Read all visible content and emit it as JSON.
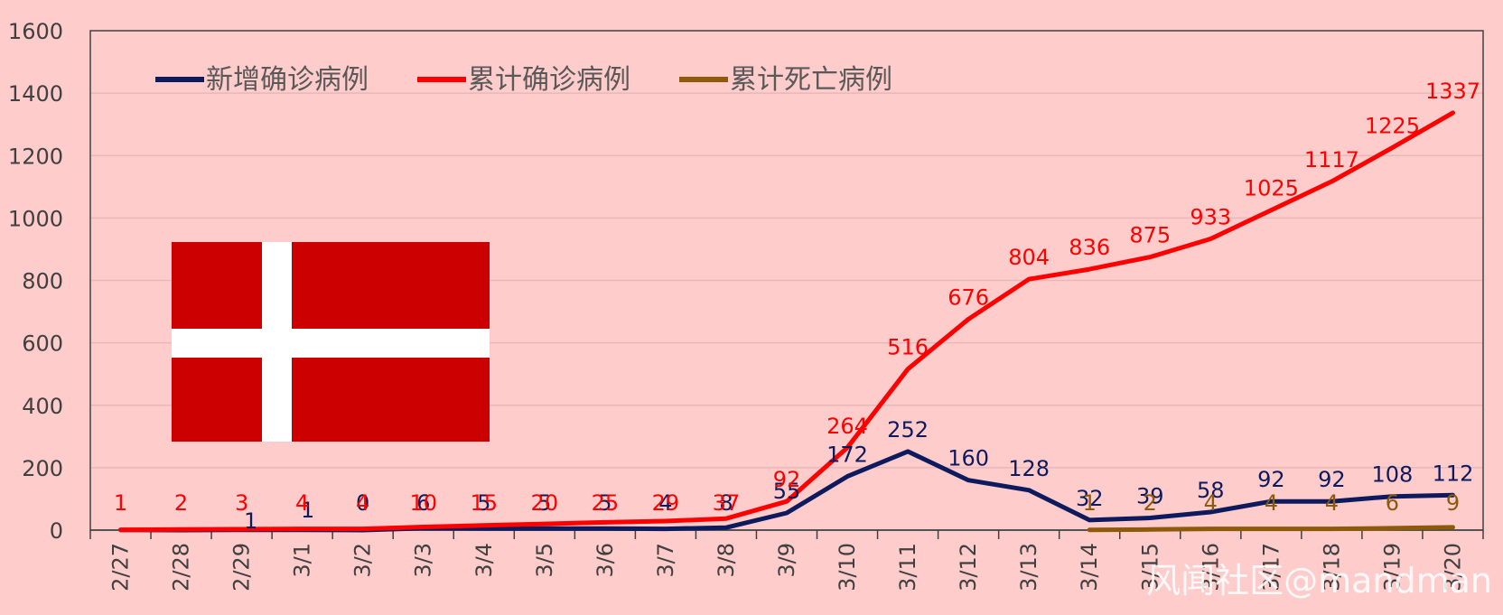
{
  "colors": {
    "background": "#ffcccc",
    "new_cases": "#0d1b5e",
    "cumulative_cases": "#ff0000",
    "cumulative_deaths": "#8c5a0a",
    "flag_red": "#cc0000",
    "flag_white": "#ffffff"
  },
  "watermark": "风闻社区@mandman",
  "chart_data": {
    "type": "line",
    "ylim": [
      0,
      1600
    ],
    "yticks": [
      0,
      200,
      400,
      600,
      800,
      1000,
      1200,
      1400,
      1600
    ],
    "grid": true,
    "legend_position": "top-left",
    "categories": [
      "2/27",
      "2/28",
      "2/29",
      "3/1",
      "3/2",
      "3/3",
      "3/4",
      "3/5",
      "3/6",
      "3/7",
      "3/8",
      "3/9",
      "3/10",
      "3/11",
      "3/12",
      "3/13",
      "3/14",
      "3/15",
      "3/16",
      "3/17",
      "3/18",
      "3/19",
      "3/20"
    ],
    "series": [
      {
        "name": "新增确诊病例",
        "color_key": "new_cases",
        "values": [
          1,
          0,
          1,
          1,
          0,
          6,
          5,
          5,
          5,
          4,
          8,
          55,
          172,
          252,
          160,
          128,
          32,
          39,
          58,
          92,
          92,
          108,
          112
        ],
        "labels": [
          "",
          "",
          "1",
          "1",
          "0",
          "6",
          "5",
          "5",
          "5",
          "4",
          "8",
          "55",
          "172",
          "252",
          "160",
          "128",
          "32",
          "39",
          "58",
          "92",
          "92",
          "108",
          "112"
        ]
      },
      {
        "name": "累计确诊病例",
        "color_key": "cumulative_cases",
        "values": [
          1,
          2,
          3,
          4,
          4,
          10,
          15,
          20,
          25,
          29,
          37,
          92,
          264,
          516,
          676,
          804,
          836,
          875,
          933,
          1025,
          1117,
          1225,
          1337
        ],
        "labels": [
          "1",
          "2",
          "3",
          "4",
          "4",
          "10",
          "15",
          "20",
          "25",
          "29",
          "37",
          "92",
          "264",
          "516",
          "676",
          "804",
          "836",
          "875",
          "933",
          "1025",
          "1117",
          "1225",
          "1337"
        ]
      },
      {
        "name": "累计死亡病例",
        "color_key": "cumulative_deaths",
        "values": [
          null,
          null,
          null,
          null,
          null,
          null,
          null,
          null,
          null,
          null,
          null,
          null,
          null,
          null,
          null,
          null,
          1,
          2,
          4,
          4,
          4,
          6,
          9
        ],
        "labels": [
          "",
          "",
          "",
          "",
          "",
          "",
          "",
          "",
          "",
          "",
          "",
          "",
          "",
          "",
          "",
          "",
          "1",
          "2",
          "4",
          "4",
          "4",
          "6",
          "9"
        ]
      }
    ],
    "image": "Danish flag"
  }
}
